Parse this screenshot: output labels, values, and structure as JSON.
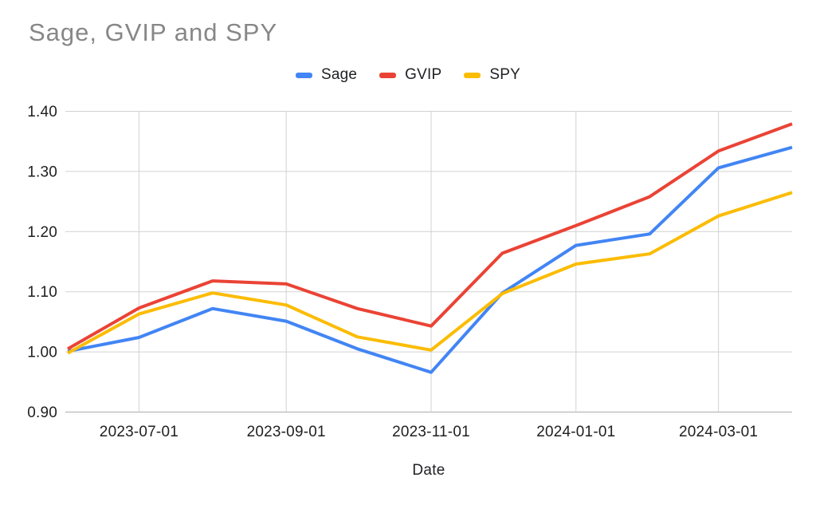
{
  "chart_data": {
    "type": "line",
    "title": "Sage, GVIP and SPY",
    "xlabel": "Date",
    "ylabel": "",
    "x": [
      "2023-06-01",
      "2023-07-01",
      "2023-08-01",
      "2023-09-01",
      "2023-10-01",
      "2023-11-01",
      "2023-12-01",
      "2024-01-01",
      "2024-02-01",
      "2024-03-01",
      "2024-04-01"
    ],
    "series": [
      {
        "name": "Sage",
        "color": "#4285F4",
        "values": [
          1.001,
          1.024,
          1.072,
          1.051,
          1.005,
          0.966,
          1.098,
          1.177,
          1.196,
          1.306,
          1.34
        ]
      },
      {
        "name": "GVIP",
        "color": "#EA4335",
        "values": [
          1.005,
          1.073,
          1.118,
          1.113,
          1.072,
          1.043,
          1.164,
          1.21,
          1.258,
          1.334,
          1.379
        ]
      },
      {
        "name": "SPY",
        "color": "#FBBC04",
        "values": [
          0.998,
          1.063,
          1.098,
          1.078,
          1.025,
          1.003,
          1.097,
          1.146,
          1.163,
          1.226,
          1.265
        ]
      }
    ],
    "ylim": [
      0.9,
      1.4
    ],
    "yticks": [
      "0.90",
      "1.00",
      "1.10",
      "1.20",
      "1.30",
      "1.40"
    ],
    "xticks": [
      "2023-07-01",
      "2023-09-01",
      "2023-11-01",
      "2024-01-01",
      "2024-03-01"
    ],
    "grid": true,
    "legend_position": "top",
    "colors": {
      "grid": "#d2d2d2",
      "axis_line": "#ababab",
      "tick_text": "#1f1f1f",
      "title_text": "#878787"
    }
  }
}
